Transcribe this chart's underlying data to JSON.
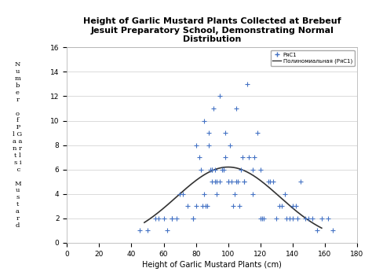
{
  "title": "Height of Garlic Mustard Plants Collected at Brebeuf\nJesuit Preparatory School, Demonstrating Normal\nDistribution",
  "xlabel": "Height of Garlic Mustard Plants (cm)",
  "xlim": [
    0,
    180
  ],
  "ylim": [
    0,
    16
  ],
  "xticks": [
    0,
    20,
    40,
    60,
    80,
    100,
    120,
    140,
    160,
    180
  ],
  "yticks": [
    0,
    2,
    4,
    6,
    8,
    10,
    12,
    14,
    16
  ],
  "scatter_color": "#4472c4",
  "curve_color": "#333333",
  "background_color": "#ffffff",
  "header_color": "#1f3864",
  "legend_label_scatter": "РяС1",
  "legend_label_curve": "Полиномиальная (РяС1)",
  "scatter_x": [
    45,
    50,
    55,
    57,
    60,
    62,
    65,
    65,
    68,
    70,
    72,
    75,
    78,
    78,
    80,
    80,
    82,
    83,
    84,
    85,
    85,
    86,
    87,
    88,
    88,
    89,
    90,
    90,
    90,
    91,
    92,
    92,
    93,
    93,
    95,
    95,
    96,
    97,
    98,
    98,
    100,
    100,
    101,
    102,
    103,
    104,
    105,
    105,
    106,
    107,
    108,
    109,
    110,
    110,
    112,
    113,
    115,
    115,
    116,
    118,
    120,
    120,
    121,
    122,
    125,
    126,
    128,
    130,
    132,
    133,
    135,
    136,
    138,
    140,
    140,
    142,
    143,
    145,
    148,
    150,
    152,
    155,
    158,
    162,
    165
  ],
  "scatter_y": [
    1,
    1,
    2,
    2,
    2,
    1,
    2,
    2,
    2,
    4,
    4,
    3,
    2,
    2,
    3,
    8,
    7,
    6,
    3,
    4,
    10,
    3,
    3,
    8,
    9,
    6,
    6,
    6,
    5,
    11,
    6,
    5,
    5,
    4,
    12,
    5,
    6,
    6,
    7,
    9,
    5,
    5,
    8,
    5,
    3,
    4,
    11,
    5,
    5,
    3,
    6,
    7,
    5,
    5,
    13,
    7,
    6,
    4,
    7,
    9,
    6,
    2,
    2,
    2,
    5,
    5,
    5,
    2,
    3,
    3,
    4,
    2,
    2,
    2,
    3,
    3,
    2,
    5,
    2,
    2,
    2,
    1,
    2,
    2,
    1
  ],
  "curve_peak_x": 100,
  "curve_peak_y": 6.2,
  "curve_sigma": 32,
  "curve_x_start": 48,
  "curve_x_end": 158
}
